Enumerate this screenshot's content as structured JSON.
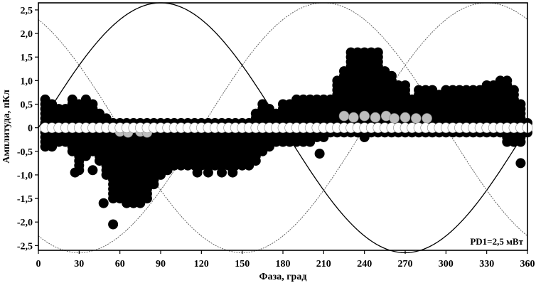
{
  "chart_data": {
    "type": "scatter",
    "title": "",
    "xlabel": "Фаза, град",
    "ylabel": "Амплитуда, пКл",
    "xlim": [
      0,
      360
    ],
    "ylim": [
      -2.6,
      2.65
    ],
    "xticks": [
      0,
      30,
      60,
      90,
      120,
      150,
      180,
      210,
      240,
      270,
      300,
      330,
      360
    ],
    "xtick_labels": [
      "0",
      "30",
      "60",
      "90",
      "120",
      "150",
      "180",
      "210",
      "240",
      "270",
      "300",
      "330",
      "360"
    ],
    "yticks": [
      2.5,
      2.0,
      1.5,
      1.0,
      0.5,
      0,
      -0.5,
      -1.0,
      -1.5,
      -2.0,
      -2.5
    ],
    "ytick_labels": [
      "2,5",
      "2,0",
      "1,5",
      "1,0",
      "0,5",
      "0",
      "-0,5",
      "-1,0",
      "-1,5",
      "-2,0",
      "-2,5"
    ],
    "annotation": "PD1=2,5 мВт",
    "grid": false,
    "reference_sines": {
      "amplitude": 2.65,
      "phase_shifts_deg": [
        0,
        120,
        240
      ],
      "colors": [
        "#000000",
        "#555555",
        "#555555"
      ]
    },
    "columns_phase_step_deg": 5,
    "point_amplitude_step": 0.1,
    "positive_tops": [
      [
        5,
        0.6
      ],
      [
        10,
        0.5
      ],
      [
        15,
        0.4
      ],
      [
        20,
        0.4
      ],
      [
        25,
        0.6
      ],
      [
        30,
        0.5
      ],
      [
        35,
        0.6
      ],
      [
        40,
        0.5
      ],
      [
        45,
        0.3
      ],
      [
        50,
        0.2
      ],
      [
        55,
        0.1
      ],
      [
        60,
        0.1
      ],
      [
        65,
        0.1
      ],
      [
        70,
        0.1
      ],
      [
        75,
        0.1
      ],
      [
        80,
        0.1
      ],
      [
        85,
        0.1
      ],
      [
        90,
        0.1
      ],
      [
        95,
        0.1
      ],
      [
        100,
        0.1
      ],
      [
        105,
        0.1
      ],
      [
        110,
        0.1
      ],
      [
        115,
        0.1
      ],
      [
        120,
        0.1
      ],
      [
        125,
        0.1
      ],
      [
        130,
        0.1
      ],
      [
        135,
        0.1
      ],
      [
        140,
        0.1
      ],
      [
        145,
        0.1
      ],
      [
        150,
        0.1
      ],
      [
        155,
        0.1
      ],
      [
        160,
        0.3
      ],
      [
        165,
        0.5
      ],
      [
        170,
        0.4
      ],
      [
        175,
        0.3
      ],
      [
        180,
        0.5
      ],
      [
        185,
        0.5
      ],
      [
        190,
        0.6
      ],
      [
        195,
        0.6
      ],
      [
        200,
        0.6
      ],
      [
        205,
        0.6
      ],
      [
        210,
        0.6
      ],
      [
        215,
        0.6
      ],
      [
        220,
        1.0
      ],
      [
        225,
        1.2
      ],
      [
        230,
        1.6
      ],
      [
        235,
        1.6
      ],
      [
        240,
        1.6
      ],
      [
        245,
        1.6
      ],
      [
        250,
        1.6
      ],
      [
        255,
        1.2
      ],
      [
        260,
        1.1
      ],
      [
        265,
        0.9
      ],
      [
        270,
        0.9
      ],
      [
        275,
        0.6
      ],
      [
        280,
        0.8
      ],
      [
        285,
        0.8
      ],
      [
        290,
        0.8
      ],
      [
        295,
        0.7
      ],
      [
        300,
        0.8
      ],
      [
        305,
        0.8
      ],
      [
        310,
        0.8
      ],
      [
        315,
        0.8
      ],
      [
        320,
        0.8
      ],
      [
        325,
        0.8
      ],
      [
        330,
        0.9
      ],
      [
        335,
        0.9
      ],
      [
        340,
        1.0
      ],
      [
        345,
        1.0
      ],
      [
        350,
        0.8
      ],
      [
        355,
        0.5
      ],
      [
        360,
        0.1
      ]
    ],
    "negative_bottoms": [
      [
        5,
        -0.4
      ],
      [
        10,
        -0.4
      ],
      [
        15,
        -0.3
      ],
      [
        20,
        -0.3
      ],
      [
        25,
        -0.5
      ],
      [
        30,
        -0.9
      ],
      [
        35,
        -0.6
      ],
      [
        40,
        -0.5
      ],
      [
        45,
        -0.7
      ],
      [
        50,
        -1.0
      ],
      [
        55,
        -1.5
      ],
      [
        60,
        -1.5
      ],
      [
        65,
        -1.6
      ],
      [
        70,
        -1.6
      ],
      [
        75,
        -1.6
      ],
      [
        80,
        -1.5
      ],
      [
        85,
        -1.2
      ],
      [
        90,
        -1.0
      ],
      [
        95,
        -0.9
      ],
      [
        100,
        -0.8
      ],
      [
        105,
        -0.8
      ],
      [
        110,
        -0.8
      ],
      [
        115,
        -0.8
      ],
      [
        120,
        -0.8
      ],
      [
        125,
        -0.8
      ],
      [
        130,
        -0.8
      ],
      [
        135,
        -0.8
      ],
      [
        140,
        -0.8
      ],
      [
        145,
        -0.8
      ],
      [
        150,
        -0.8
      ],
      [
        155,
        -0.8
      ],
      [
        160,
        -0.7
      ],
      [
        165,
        -0.5
      ],
      [
        170,
        -0.4
      ],
      [
        175,
        -0.3
      ],
      [
        180,
        -0.3
      ],
      [
        185,
        -0.3
      ],
      [
        190,
        -0.3
      ],
      [
        195,
        -0.3
      ],
      [
        200,
        -0.3
      ],
      [
        205,
        -0.2
      ],
      [
        210,
        -0.2
      ],
      [
        215,
        -0.1
      ],
      [
        220,
        -0.1
      ],
      [
        225,
        -0.1
      ],
      [
        230,
        -0.1
      ],
      [
        235,
        -0.1
      ],
      [
        240,
        -0.1
      ],
      [
        245,
        -0.1
      ],
      [
        250,
        -0.1
      ],
      [
        255,
        -0.1
      ],
      [
        260,
        -0.1
      ],
      [
        265,
        -0.1
      ],
      [
        270,
        -0.1
      ],
      [
        275,
        -0.1
      ],
      [
        280,
        -0.1
      ],
      [
        285,
        -0.1
      ],
      [
        290,
        -0.1
      ],
      [
        295,
        -0.1
      ],
      [
        300,
        -0.1
      ],
      [
        305,
        -0.1
      ],
      [
        310,
        -0.1
      ],
      [
        315,
        -0.1
      ],
      [
        320,
        -0.1
      ],
      [
        325,
        -0.1
      ],
      [
        330,
        -0.1
      ],
      [
        335,
        -0.1
      ],
      [
        340,
        -0.1
      ],
      [
        345,
        -0.3
      ],
      [
        350,
        -0.3
      ],
      [
        355,
        -0.3
      ],
      [
        360,
        -0.1
      ]
    ],
    "outlier_points": [
      [
        27,
        -0.95
      ],
      [
        40,
        -0.9
      ],
      [
        48,
        -1.6
      ],
      [
        55,
        -2.05
      ],
      [
        117,
        -0.95
      ],
      [
        125,
        -0.95
      ],
      [
        135,
        -0.95
      ],
      [
        143,
        -0.95
      ],
      [
        207,
        -0.55
      ],
      [
        240,
        -0.2
      ],
      [
        355,
        -0.75
      ]
    ],
    "light_points": [
      [
        225,
        0.25
      ],
      [
        232,
        0.22
      ],
      [
        240,
        0.25
      ],
      [
        248,
        0.22
      ],
      [
        256,
        0.25
      ],
      [
        262,
        0.2
      ],
      [
        270,
        0.22
      ],
      [
        278,
        0.2
      ],
      [
        286,
        0.2
      ],
      [
        60,
        -0.08
      ],
      [
        66,
        -0.1
      ],
      [
        75,
        -0.08
      ],
      [
        80,
        -0.1
      ]
    ],
    "zero_line_points": "white circles at every 5° column along amplitude 0"
  }
}
